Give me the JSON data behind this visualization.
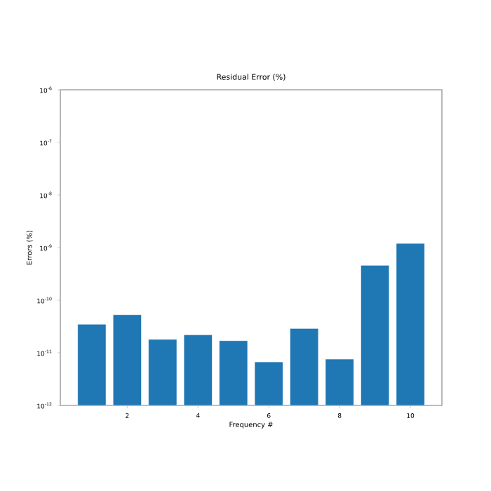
{
  "chart_data": {
    "type": "bar",
    "title": "Residual Error (%)",
    "xlabel": "Frequency #",
    "ylabel": "Errors (%)",
    "x": [
      1,
      2,
      3,
      4,
      5,
      6,
      7,
      8,
      9,
      10
    ],
    "values": [
      3.5e-11,
      5.3e-11,
      1.8e-11,
      2.2e-11,
      1.7e-11,
      6.7e-12,
      2.9e-11,
      7.6e-12,
      4.6e-10,
      1.2e-09
    ],
    "color": "#1f77b4",
    "log": "y",
    "grid": false,
    "xlim": [
      0.11,
      10.89
    ],
    "xticks": [
      2,
      4,
      6,
      8,
      10
    ],
    "ylim": [
      1e-12,
      1e-06
    ],
    "yticks": [
      {
        "value": 1e-12,
        "label": "10$^{-12}$"
      },
      {
        "value": 1e-11,
        "label": "10$^{-11}$"
      },
      {
        "value": 1e-10,
        "label": "10$^{-10}$"
      },
      {
        "value": 1e-09,
        "label": "10$^{-9}$"
      },
      {
        "value": 1e-08,
        "label": "10$^{-8}$"
      },
      {
        "value": 1e-07,
        "label": "10$^{-7}$"
      },
      {
        "value": 1e-06,
        "label": "10$^{-6}$"
      }
    ]
  }
}
